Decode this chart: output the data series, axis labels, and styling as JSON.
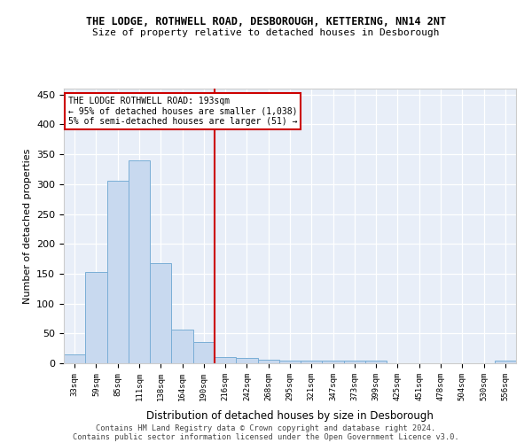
{
  "title_line1": "THE LODGE, ROTHWELL ROAD, DESBOROUGH, KETTERING, NN14 2NT",
  "title_line2": "Size of property relative to detached houses in Desborough",
  "xlabel": "Distribution of detached houses by size in Desborough",
  "ylabel": "Number of detached properties",
  "categories": [
    "33sqm",
    "59sqm",
    "85sqm",
    "111sqm",
    "138sqm",
    "164sqm",
    "190sqm",
    "216sqm",
    "242sqm",
    "268sqm",
    "295sqm",
    "321sqm",
    "347sqm",
    "373sqm",
    "399sqm",
    "425sqm",
    "451sqm",
    "478sqm",
    "504sqm",
    "530sqm",
    "556sqm"
  ],
  "values": [
    15,
    153,
    305,
    340,
    167,
    57,
    35,
    10,
    9,
    6,
    4,
    5,
    5,
    5,
    5,
    0,
    0,
    0,
    0,
    0,
    5
  ],
  "bar_color": "#c8d9ef",
  "bar_edge_color": "#7aaed6",
  "vline_x_index": 6.5,
  "vline_color": "#cc0000",
  "annotation_text": "THE LODGE ROTHWELL ROAD: 193sqm\n← 95% of detached houses are smaller (1,038)\n5% of semi-detached houses are larger (51) →",
  "annotation_box_color": "#ffffff",
  "annotation_box_edge": "#cc0000",
  "ylim": [
    0,
    460
  ],
  "yticks": [
    0,
    50,
    100,
    150,
    200,
    250,
    300,
    350,
    400,
    450
  ],
  "background_color": "#e8eef8",
  "grid_color": "#ffffff",
  "footer_line1": "Contains HM Land Registry data © Crown copyright and database right 2024.",
  "footer_line2": "Contains public sector information licensed under the Open Government Licence v3.0."
}
